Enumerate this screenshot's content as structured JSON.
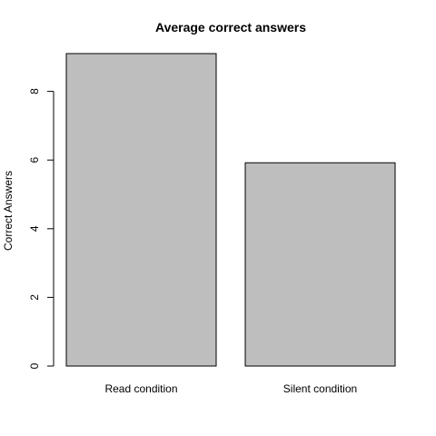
{
  "chart_data": {
    "type": "bar",
    "title": "Average correct answers",
    "xlabel": "",
    "ylabel": "Correct Answers",
    "categories": [
      "Read condition",
      "Silent condition"
    ],
    "values": [
      9.1,
      5.92
    ],
    "ylim": [
      0,
      9.1
    ],
    "yticks": [
      "0",
      "2",
      "4",
      "6",
      "8"
    ],
    "grid": false,
    "legend": "none",
    "colors": {
      "bar_fill": "#bebebe",
      "bar_stroke": "#000000",
      "background": "#ffffff",
      "text": "#000000"
    }
  }
}
